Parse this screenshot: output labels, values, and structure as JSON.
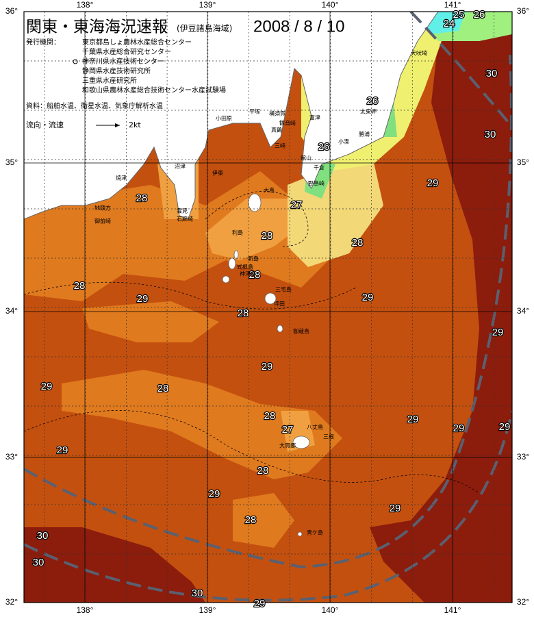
{
  "header": {
    "title": "関東・東海海況速報",
    "subtitle": "(伊豆諸島海域)",
    "date": "2008 / 8 / 10",
    "issuer_label": "発行機関：",
    "issuers": [
      "東京都島しょ農林水産総合センター",
      "千葉県水産総合研究センター",
      "神奈川県水産技術センター",
      "静岡県水産技術研究所",
      "三重県水産研究所",
      "和歌山県農林水産総合技術センター水産試験場"
    ],
    "source": "資料：船舶水温、衛星水温、気象庁解析水温"
  },
  "legend": {
    "label": "流向・流速",
    "speed": "2kt"
  },
  "axes": {
    "longitude": [
      "138°",
      "139°",
      "140°",
      "141°"
    ],
    "latitude": [
      "36°",
      "35°",
      "34°",
      "33°",
      "32°"
    ]
  },
  "isotherm_labels": [
    "24",
    "25",
    "26",
    "26",
    "30",
    "30",
    "26",
    "29",
    "28",
    "27",
    "28",
    "28",
    "28",
    "28",
    "29",
    "29",
    "28",
    "29",
    "29",
    "29",
    "28",
    "28",
    "29",
    "27",
    "29",
    "29",
    "29",
    "28",
    "29",
    "29",
    "28",
    "30",
    "30",
    "30",
    "29"
  ],
  "place_names": [
    "犬吠埼",
    "太東岬",
    "勝浦",
    "小湊",
    "館山",
    "千倉",
    "野島崎",
    "富津",
    "観音崎",
    "横須賀",
    "平塚",
    "小田原",
    "真鶴",
    "三崎",
    "伊東",
    "沼津",
    "焼津",
    "地頭方",
    "御前崎",
    "雲見",
    "石廊崎",
    "大島",
    "利島",
    "新島",
    "式根島",
    "神津島",
    "三宅島",
    "坪田",
    "御蔵島",
    "八丈島",
    "三根",
    "大賀郷",
    "青ケ島"
  ]
}
